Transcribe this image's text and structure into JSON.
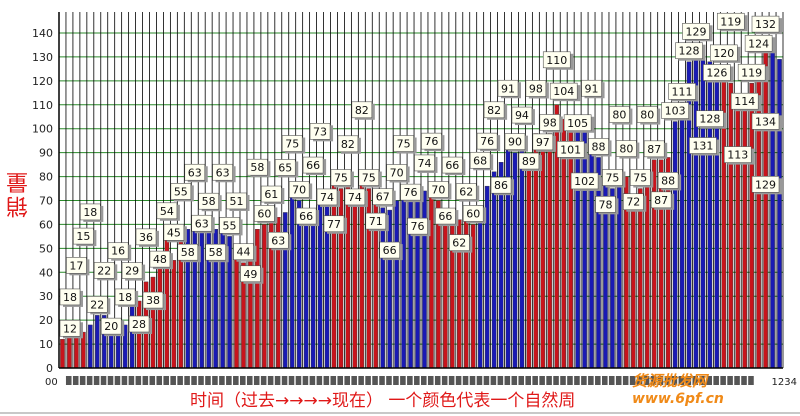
{
  "chart_data": {
    "type": "bar",
    "title": "",
    "ylabel": "销量",
    "xlabel": "时间（过去→→→→现在） 一个颜色代表一个自然周",
    "ylim": [
      0,
      140
    ],
    "yticks": [
      0,
      10,
      20,
      30,
      40,
      50,
      60,
      70,
      80,
      90,
      100,
      110,
      120,
      130,
      140
    ],
    "grid": true,
    "x_tick_edge_labels": [
      "00",
      "1234"
    ],
    "colors": {
      "week_a": "#c8141c",
      "week_b": "#1a1ab4",
      "grid_h": "#2a8a2a",
      "grid_v": "#000000",
      "label_bg": "#fffff0"
    },
    "weeks": [
      [
        12,
        18,
        17,
        15
      ],
      [
        18,
        22,
        22,
        20,
        16,
        18,
        29
      ],
      [
        28,
        36,
        38,
        48,
        54,
        45,
        55
      ],
      [
        58,
        63,
        63,
        58,
        58,
        63,
        55
      ],
      [
        51,
        44,
        49,
        58,
        60,
        61,
        63
      ],
      [
        65,
        75,
        70,
        66,
        66,
        73,
        74
      ],
      [
        77,
        75,
        82,
        74,
        82,
        75,
        71
      ],
      [
        67,
        66,
        70,
        75,
        76,
        76,
        74
      ],
      [
        76,
        70,
        66,
        66,
        62,
        62,
        60
      ],
      [
        68,
        76,
        82,
        86,
        91,
        90,
        94
      ],
      [
        89,
        98,
        97,
        98,
        110,
        104,
        101
      ],
      [
        105,
        102,
        91,
        88,
        78,
        75,
        80
      ],
      [
        80,
        72,
        75,
        80,
        87,
        87,
        88
      ],
      [
        103,
        111,
        128,
        129,
        131,
        128,
        126
      ],
      [
        120,
        119,
        113,
        114,
        119,
        124,
        132
      ],
      [
        134,
        129
      ]
    ]
  },
  "watermark": {
    "line1": "货源批发网",
    "line2": "www.6pf.cn"
  }
}
